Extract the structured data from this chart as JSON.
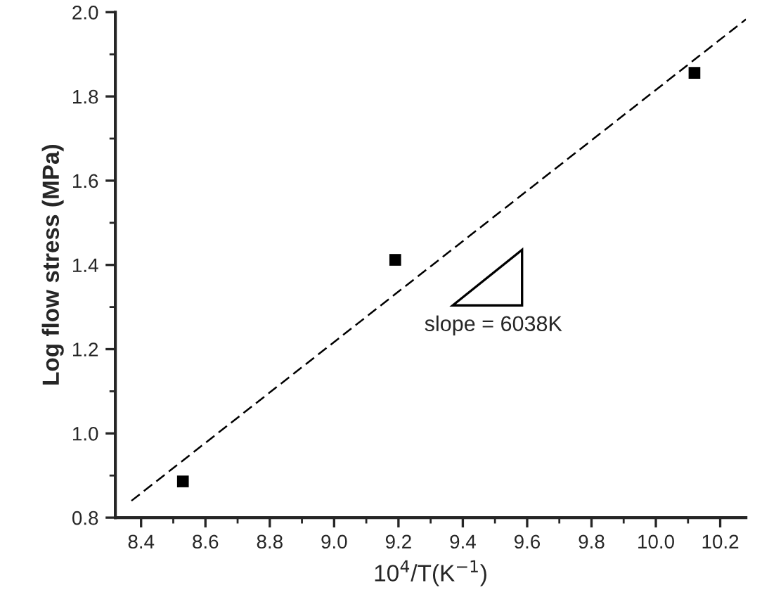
{
  "chart_data": {
    "type": "scatter",
    "xlabel": "10$^{4}$/T(K$^{−1}$)",
    "ylabel": "Log flow stress (MPa)",
    "series": [
      {
        "x": [
          8.53,
          9.19,
          10.12
        ],
        "values": [
          0.886,
          1.412,
          1.856
        ],
        "color": "#000000",
        "marker": "square"
      },
      {
        "type": "line",
        "x": [
          8.37,
          10.28
        ],
        "values": [
          0.84,
          1.983
        ],
        "color": "#000000",
        "line_style": "dashed",
        "marker": "none"
      }
    ],
    "annotations": [
      "slope = 6038K"
    ],
    "xlim": [
      8.32,
      10.28
    ],
    "ylim": [
      0.8,
      2.0
    ],
    "xticks": [
      {
        "value": 8.4,
        "label": "8.4"
      },
      {
        "value": 8.6,
        "label": "8.6"
      },
      {
        "value": 8.8,
        "label": "8.8"
      },
      {
        "value": 9.0,
        "label": "9.0"
      },
      {
        "value": 9.2,
        "label": "9.2"
      },
      {
        "value": 9.4,
        "label": "9.4"
      },
      {
        "value": 9.6,
        "label": "9.6"
      },
      {
        "value": 9.8,
        "label": "9.8"
      },
      {
        "value": 10.0,
        "label": "10.0"
      },
      {
        "value": 10.2,
        "label": "10.2"
      }
    ],
    "yticks": [
      {
        "value": 0.8,
        "label": "0.8"
      },
      {
        "value": 1.0,
        "label": "1.0"
      },
      {
        "value": 1.2,
        "label": "1.2"
      },
      {
        "value": 1.4,
        "label": "1.4"
      },
      {
        "value": 1.6,
        "label": "1.6"
      },
      {
        "value": 1.8,
        "label": "1.8"
      },
      {
        "value": 2.0,
        "label": "2.0"
      }
    ],
    "grid": false,
    "legend": false
  }
}
